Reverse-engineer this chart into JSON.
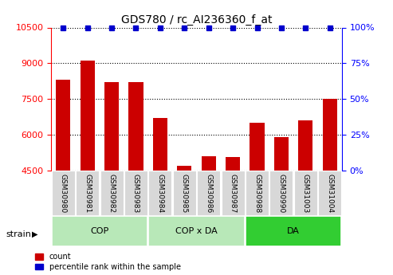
{
  "title": "GDS780 / rc_AI236360_f_at",
  "samples": [
    "GSM30980",
    "GSM30981",
    "GSM30982",
    "GSM30983",
    "GSM30984",
    "GSM30985",
    "GSM30986",
    "GSM30987",
    "GSM30988",
    "GSM30990",
    "GSM31003",
    "GSM31004"
  ],
  "counts": [
    8300,
    9100,
    8200,
    8200,
    6700,
    4700,
    5100,
    5050,
    6500,
    5900,
    6600,
    7500
  ],
  "percentile": [
    100,
    100,
    100,
    100,
    100,
    100,
    100,
    100,
    100,
    100,
    100,
    100
  ],
  "groups": [
    {
      "label": "COP",
      "start": 0,
      "end": 3,
      "color": "#b8e8b8"
    },
    {
      "label": "COP x DA",
      "start": 4,
      "end": 7,
      "color": "#b8e8b8"
    },
    {
      "label": "DA",
      "start": 8,
      "end": 11,
      "color": "#32CD32"
    }
  ],
  "ylim_left": [
    4500,
    10500
  ],
  "ylim_right": [
    0,
    100
  ],
  "yticks_left": [
    4500,
    6000,
    7500,
    9000,
    10500
  ],
  "yticks_right": [
    0,
    25,
    50,
    75,
    100
  ],
  "bar_color": "#cc0000",
  "dot_color": "#0000cc",
  "bar_width": 0.6,
  "background_color": "#ffffff",
  "strain_label": "strain",
  "legend_count": "count",
  "legend_percentile": "percentile rank within the sample"
}
